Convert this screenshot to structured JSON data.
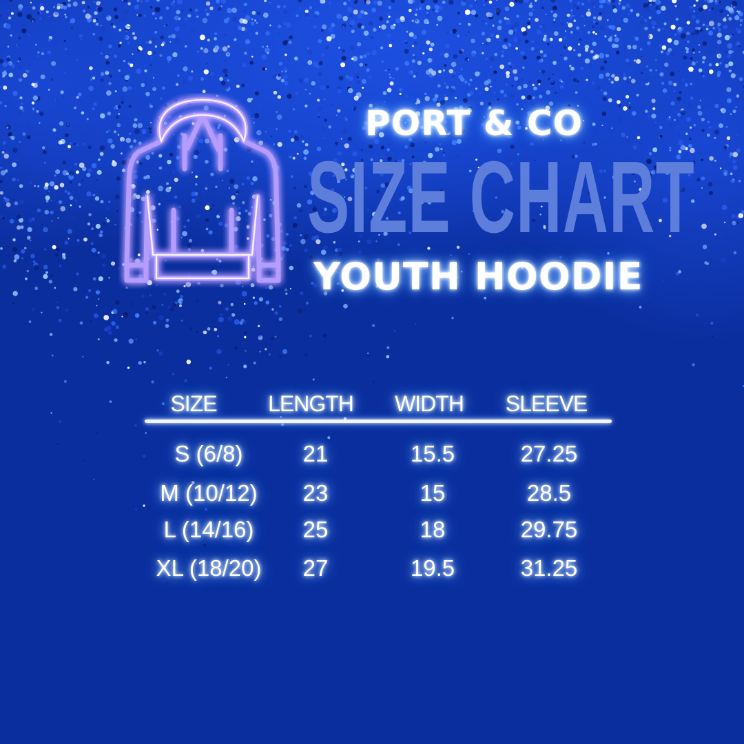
{
  "header": {
    "brand": "PORT & CO",
    "title": "SIZE CHART",
    "subtitle": "YOUTH HOODIE",
    "icon": "hoodie-icon"
  },
  "colors": {
    "background": "#0b2e9e",
    "title": "#5d7fdb",
    "icon_neon": "#b59cff"
  },
  "table": {
    "columns": [
      "SIZE",
      "LENGTH",
      "WIDTH",
      "SLEEVE"
    ],
    "rows": [
      [
        "S (6/8)",
        "21",
        "15.5",
        "27.25"
      ],
      [
        "M (10/12)",
        "23",
        "15",
        "28.5"
      ],
      [
        "L (14/16)",
        "25",
        "18",
        "29.75"
      ],
      [
        "XL (18/20)",
        "27",
        "19.5",
        "31.25"
      ]
    ]
  }
}
